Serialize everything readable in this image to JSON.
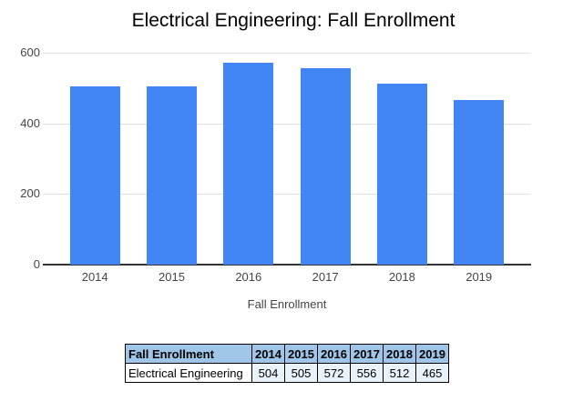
{
  "chart_data": {
    "type": "bar",
    "title": "Electrical Engineering: Fall Enrollment",
    "categories": [
      "2014",
      "2015",
      "2016",
      "2017",
      "2018",
      "2019"
    ],
    "values": [
      504,
      505,
      572,
      556,
      512,
      465
    ],
    "series_name": "Electrical Engineering",
    "xlabel": "Fall Enrollment",
    "ylabel": "",
    "ylim": [
      0,
      600
    ],
    "yticks": [
      0,
      200,
      400,
      600
    ],
    "grid": true,
    "legend": "none",
    "colors": {
      "bar": "#4285f4",
      "gridline": "#e0e0e0",
      "axis_line": "#333333",
      "tick_label": "#444444",
      "title_text": "#000000"
    }
  },
  "table": {
    "header": [
      "Fall Enrollment",
      "2014",
      "2015",
      "2016",
      "2017",
      "2018",
      "2019"
    ],
    "rows": [
      [
        "Electrical Engineering",
        "504",
        "505",
        "572",
        "556",
        "512",
        "465"
      ]
    ],
    "colors": {
      "header_bg": "#9fc5e8",
      "value_bg": "#e9f1f9",
      "name_bg": "#ffffff",
      "border": "#000000",
      "text": "#000000"
    }
  }
}
